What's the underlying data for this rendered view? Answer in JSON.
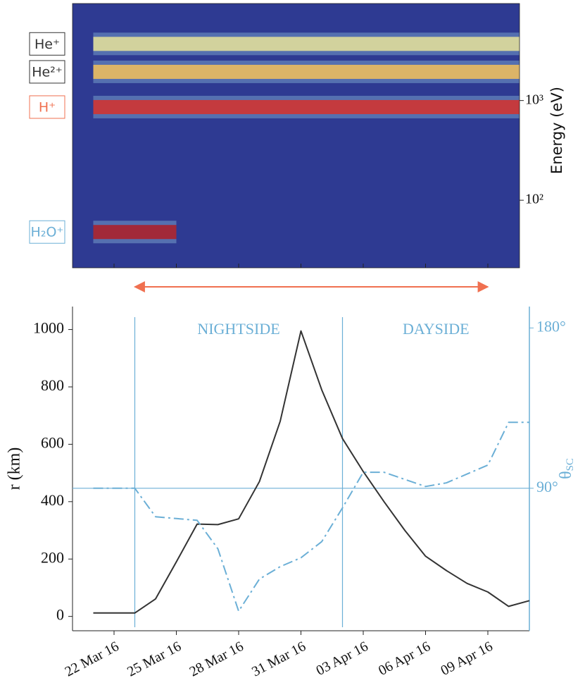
{
  "chart_data": [
    {
      "type": "spectrogram",
      "ylabel": "Energy (eV)",
      "log_y": true,
      "ylim": [
        21,
        9400
      ],
      "yticks": [
        {
          "value": 100,
          "label": "10²"
        },
        {
          "value": 1000,
          "label": "10³"
        }
      ],
      "xlim": [
        "2016-03-20",
        "2016-04-11"
      ],
      "xticks": [
        "2016-03-22",
        "2016-03-25",
        "2016-03-28",
        "2016-03-31",
        "2016-04-03",
        "2016-04-06",
        "2016-04-09"
      ],
      "background": "#2e3a92",
      "bands": [
        {
          "name": "He⁺",
          "label_color": "#333333",
          "energy": 3700,
          "start": "2016-03-21",
          "end": "2016-04-11",
          "color": "#e9e39a"
        },
        {
          "name": "He²⁺",
          "label_color": "#333333",
          "energy": 1940,
          "start": "2016-03-21",
          "end": "2016-04-11",
          "color": "#f4c05a"
        },
        {
          "name": "H⁺",
          "label_color": "#f07050",
          "energy": 860,
          "start": "2016-03-21",
          "end": "2016-04-11",
          "color": "#d8302a"
        },
        {
          "name": "H₂O⁺",
          "label_color": "#6bafd6",
          "energy": 48,
          "start": "2016-03-21",
          "end": "2016-03-25",
          "color": "#b01c24"
        }
      ],
      "interval": [
        "2016-03-23",
        "2016-04-09"
      ],
      "interval_color": "#f07050"
    },
    {
      "type": "line",
      "ylabel": "r (km)",
      "y2label": "θ",
      "y2label_sub": "SC",
      "x": [
        "2016-03-21",
        "2016-03-22",
        "2016-03-23",
        "2016-03-24",
        "2016-03-25",
        "2016-03-26",
        "2016-03-27",
        "2016-03-28",
        "2016-03-29",
        "2016-03-30",
        "2016-03-31",
        "2016-04-01",
        "2016-04-02",
        "2016-04-03",
        "2016-04-04",
        "2016-04-05",
        "2016-04-06",
        "2016-04-07",
        "2016-04-08",
        "2016-04-09",
        "2016-04-10",
        "2016-04-11"
      ],
      "xlim": [
        "2016-03-20",
        "2016-04-11"
      ],
      "xticks": [
        {
          "value": "2016-03-22",
          "label": "22 Mar 16"
        },
        {
          "value": "2016-03-25",
          "label": "25 Mar 16"
        },
        {
          "value": "2016-03-28",
          "label": "28 Mar 16"
        },
        {
          "value": "2016-03-31",
          "label": "31 Mar 16"
        },
        {
          "value": "2016-04-03",
          "label": "03 Apr 16"
        },
        {
          "value": "2016-04-06",
          "label": "06 Apr 16"
        },
        {
          "value": "2016-04-09",
          "label": "09 Apr 16"
        }
      ],
      "ylim": [
        -50,
        1080
      ],
      "yticks": [
        0,
        200,
        400,
        600,
        800,
        1000
      ],
      "y2lim": [
        10,
        192
      ],
      "y2ticks": [
        {
          "value": 90,
          "label": "90°"
        },
        {
          "value": 180,
          "label": "180°"
        }
      ],
      "series": [
        {
          "name": "r",
          "color": "#333333",
          "values": [
            12,
            12,
            12,
            61,
            190,
            322,
            320,
            340,
            470,
            680,
            995,
            790,
            620,
            505,
            400,
            300,
            210,
            160,
            115,
            85,
            35,
            55
          ]
        },
        {
          "name": "θSC",
          "color": "#6bafd6",
          "axis": "y2",
          "dashed": true,
          "values": [
            90,
            90,
            90,
            74,
            73,
            72,
            56,
            21,
            39,
            46,
            51,
            60,
            79,
            99,
            99,
            95,
            91,
            93,
            98,
            103,
            127,
            127
          ]
        }
      ],
      "boundaries": [
        "2016-03-23",
        "2016-04-02"
      ],
      "regions": [
        "NIGHTSIDE",
        "DAYSIDE"
      ],
      "reference_line": 90,
      "accent_color": "#6bafd6"
    }
  ]
}
